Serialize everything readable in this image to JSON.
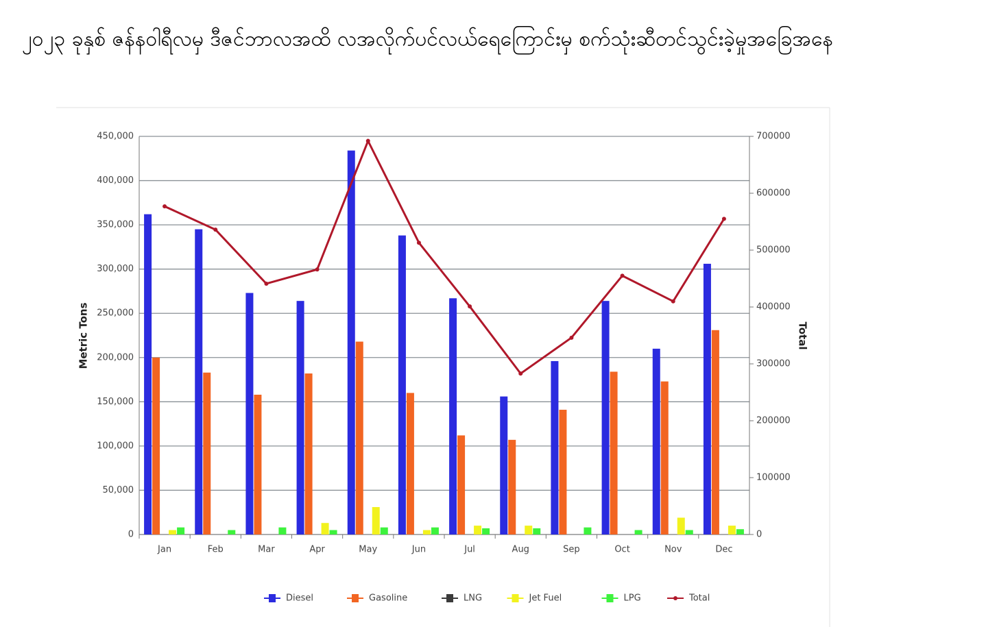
{
  "chart_data": {
    "type": "bar",
    "title": "၂၀၂၃ ခုနှစ် ဇန်နဝါရီလမှ ဒီဇင်ဘာလအထိ လအလိုက်ပင်လယ်ရေကြောင်းမှ စက်သုံးဆီတင်သွင်းခဲ့မှုအခြေအနေ",
    "y_label": "Metric Tons",
    "y2_label": "Total",
    "categories": [
      "Jan",
      "Feb",
      "Mar",
      "Apr",
      "May",
      "Jun",
      "Jul",
      "Aug",
      "Sep",
      "Oct",
      "Nov",
      "Dec"
    ],
    "series": [
      {
        "name": "Diesel",
        "color": "#2b2bdf",
        "values": [
          362000,
          345000,
          273000,
          264000,
          434000,
          338000,
          267000,
          156000,
          196000,
          264000,
          210000,
          306000
        ]
      },
      {
        "name": "Gasoline",
        "color": "#f26522",
        "values": [
          200000,
          183000,
          158000,
          182000,
          218000,
          160000,
          112000,
          107000,
          141000,
          184000,
          173000,
          231000
        ]
      },
      {
        "name": "LNG",
        "color": "#3b3b3b",
        "values": [
          0,
          0,
          0,
          0,
          0,
          0,
          0,
          0,
          0,
          0,
          0,
          0
        ]
      },
      {
        "name": "Jet Fuel",
        "color": "#f2f21e",
        "values": [
          5000,
          0,
          0,
          13000,
          31000,
          5000,
          10000,
          10000,
          0,
          0,
          19000,
          10000
        ]
      },
      {
        "name": "LPG",
        "color": "#3df23d",
        "values": [
          8000,
          5000,
          8000,
          5000,
          8000,
          8000,
          7000,
          7000,
          8000,
          5000,
          5000,
          6000
        ]
      },
      {
        "name": "Total",
        "color": "#b0182a",
        "type": "line",
        "axis": "y2",
        "values": [
          577000,
          536000,
          441000,
          466000,
          692000,
          513000,
          401000,
          283000,
          346000,
          455000,
          410000,
          555000
        ]
      }
    ],
    "ylim": [
      0,
      450000
    ],
    "yticks": [
      0,
      {
        "value": 50000,
        "label": "50,000"
      },
      {
        "value": 100000,
        "label": "100,000"
      },
      {
        "value": 150000,
        "label": "150,000"
      },
      {
        "value": 200000,
        "label": "200,000"
      },
      {
        "value": 250000,
        "label": "250,000"
      },
      {
        "value": 300000,
        "label": "300,000"
      },
      {
        "value": 350000,
        "label": "350,000"
      },
      {
        "value": 400000,
        "label": "400,000"
      },
      {
        "value": 450000,
        "label": "450,000"
      }
    ],
    "y2lim": [
      0,
      700000
    ],
    "y2ticks": [
      0,
      100000,
      200000,
      300000,
      400000,
      500000,
      600000,
      700000
    ],
    "grid": true,
    "legend": "bottom"
  }
}
